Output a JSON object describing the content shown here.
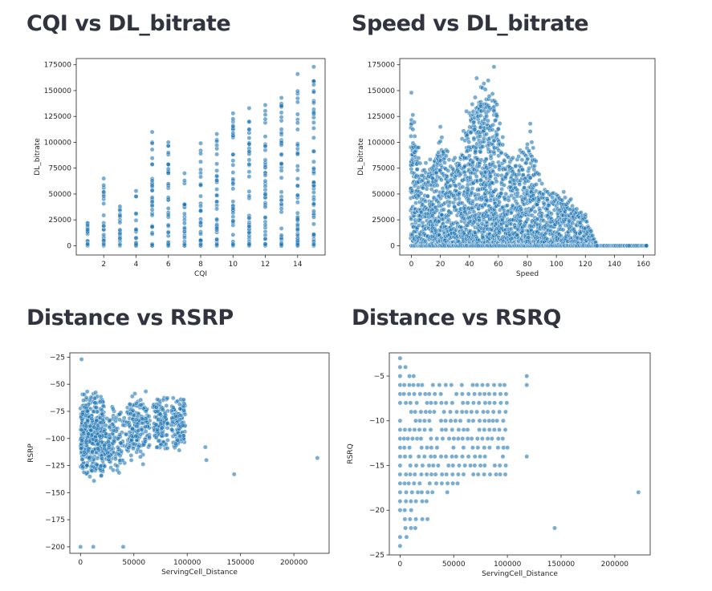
{
  "titles": [
    "CQI vs DL_bitrate",
    "Speed vs DL_bitrate",
    "Distance vs RSRP",
    "Distance vs RSRQ"
  ],
  "chart_data": [
    {
      "type": "scatter",
      "title": "CQI vs DL_bitrate",
      "xlabel": "CQI",
      "ylabel": "DL_bitrate",
      "xlim": [
        0.3,
        15.7
      ],
      "ylim": [
        -9000,
        181000
      ],
      "xticks": [
        2,
        4,
        6,
        8,
        10,
        12,
        14
      ],
      "yticks": [
        0,
        25000,
        50000,
        75000,
        100000,
        125000,
        150000,
        175000
      ],
      "x_values": [
        1,
        2,
        3,
        4,
        5,
        6,
        7,
        8,
        9,
        10,
        11,
        12,
        13,
        14,
        15
      ],
      "y_max_per_x": [
        22000,
        65000,
        38000,
        53000,
        110000,
        100000,
        70000,
        99000,
        108000,
        128000,
        133000,
        136000,
        143000,
        166000,
        173000
      ],
      "grid": false,
      "legend": "none",
      "color": "#1f77b4"
    },
    {
      "type": "scatter",
      "title": "Speed vs DL_bitrate",
      "xlabel": "Speed",
      "ylabel": "DL_bitrate",
      "xlim": [
        -8,
        168
      ],
      "ylim": [
        -9000,
        181000
      ],
      "xticks": [
        0,
        20,
        40,
        60,
        80,
        100,
        120,
        140,
        160
      ],
      "yticks": [
        0,
        25000,
        50000,
        75000,
        100000,
        125000,
        150000,
        175000
      ],
      "points_outline": [
        [
          0,
          148000
        ],
        [
          5,
          95000
        ],
        [
          10,
          80000
        ],
        [
          20,
          115000
        ],
        [
          30,
          85000
        ],
        [
          38,
          130000
        ],
        [
          45,
          162000
        ],
        [
          57,
          173000
        ],
        [
          63,
          105000
        ],
        [
          70,
          85000
        ],
        [
          82,
          118000
        ],
        [
          90,
          60000
        ],
        [
          105,
          52000
        ],
        [
          110,
          45000
        ],
        [
          120,
          30000
        ],
        [
          128,
          0
        ],
        [
          150,
          0
        ],
        [
          162,
          0
        ]
      ],
      "grid": false,
      "legend": "none",
      "color": "#1f77b4"
    },
    {
      "type": "scatter",
      "title": "Distance vs RSRP",
      "xlabel": "ServingCell_Distance",
      "ylabel": "RSRP",
      "xlim": [
        -10000,
        233000
      ],
      "ylim": [
        -206,
        -21
      ],
      "xticks": [
        0,
        50000,
        100000,
        150000,
        200000
      ],
      "yticks": [
        -25,
        -50,
        -75,
        -100,
        -125,
        -150,
        -175,
        -200
      ],
      "outliers": [
        [
          1000,
          -27
        ],
        [
          0,
          -200
        ],
        [
          12000,
          -200
        ],
        [
          40000,
          -200
        ],
        [
          117000,
          -108
        ],
        [
          118000,
          -120
        ],
        [
          144000,
          -133
        ],
        [
          222000,
          -118
        ]
      ],
      "grid": false,
      "legend": "none",
      "color": "#1f77b4"
    },
    {
      "type": "scatter",
      "title": "Distance vs RSRQ",
      "xlabel": "ServingCell_Distance",
      "ylabel": "RSRQ",
      "xlim": [
        -10000,
        233000
      ],
      "ylim": [
        -25,
        -2.4
      ],
      "xticks": [
        0,
        50000,
        100000,
        150000,
        200000
      ],
      "yticks": [
        -5,
        -10,
        -15,
        -20,
        -25
      ],
      "outliers": [
        [
          0,
          -3
        ],
        [
          118000,
          -5
        ],
        [
          118000,
          -6
        ],
        [
          118000,
          -14
        ],
        [
          144000,
          -22
        ],
        [
          222000,
          -18
        ]
      ],
      "grid": false,
      "legend": "none",
      "color": "#1f77b4"
    }
  ]
}
